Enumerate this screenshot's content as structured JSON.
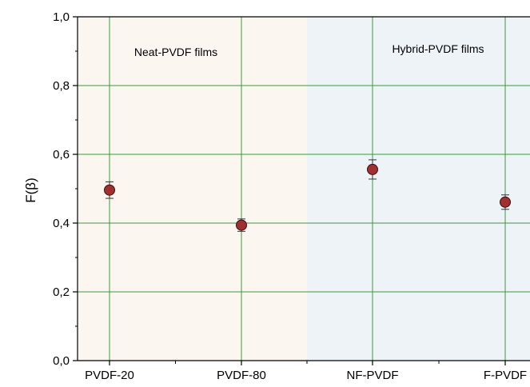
{
  "chart_data": {
    "type": "scatter",
    "categories": [
      "PVDF-20",
      "PVDF-80",
      "NF-PVDF",
      "F-PVDF"
    ],
    "series": [
      {
        "values": [
          0.496,
          0.394,
          0.556,
          0.461
        ],
        "errors": [
          0.024,
          0.018,
          0.028,
          0.021
        ]
      }
    ],
    "ylabel": "F(β)",
    "xlabel": "",
    "ylim": [
      0,
      1
    ],
    "yticks": [
      "0,0",
      "0,2",
      "0,4",
      "0,6",
      "0,8",
      "1,0"
    ],
    "regions": [
      {
        "label": "Neat-PVDF films",
        "from_category": 0,
        "to_category": 1,
        "color": "#fcf6f0"
      },
      {
        "label": "Hybrid-PVDF films",
        "from_category": 2,
        "to_category": 3,
        "color": "#eef3f8"
      }
    ],
    "grid": true,
    "grid_color": "#3c9a3c",
    "marker_color": "#a03030"
  }
}
